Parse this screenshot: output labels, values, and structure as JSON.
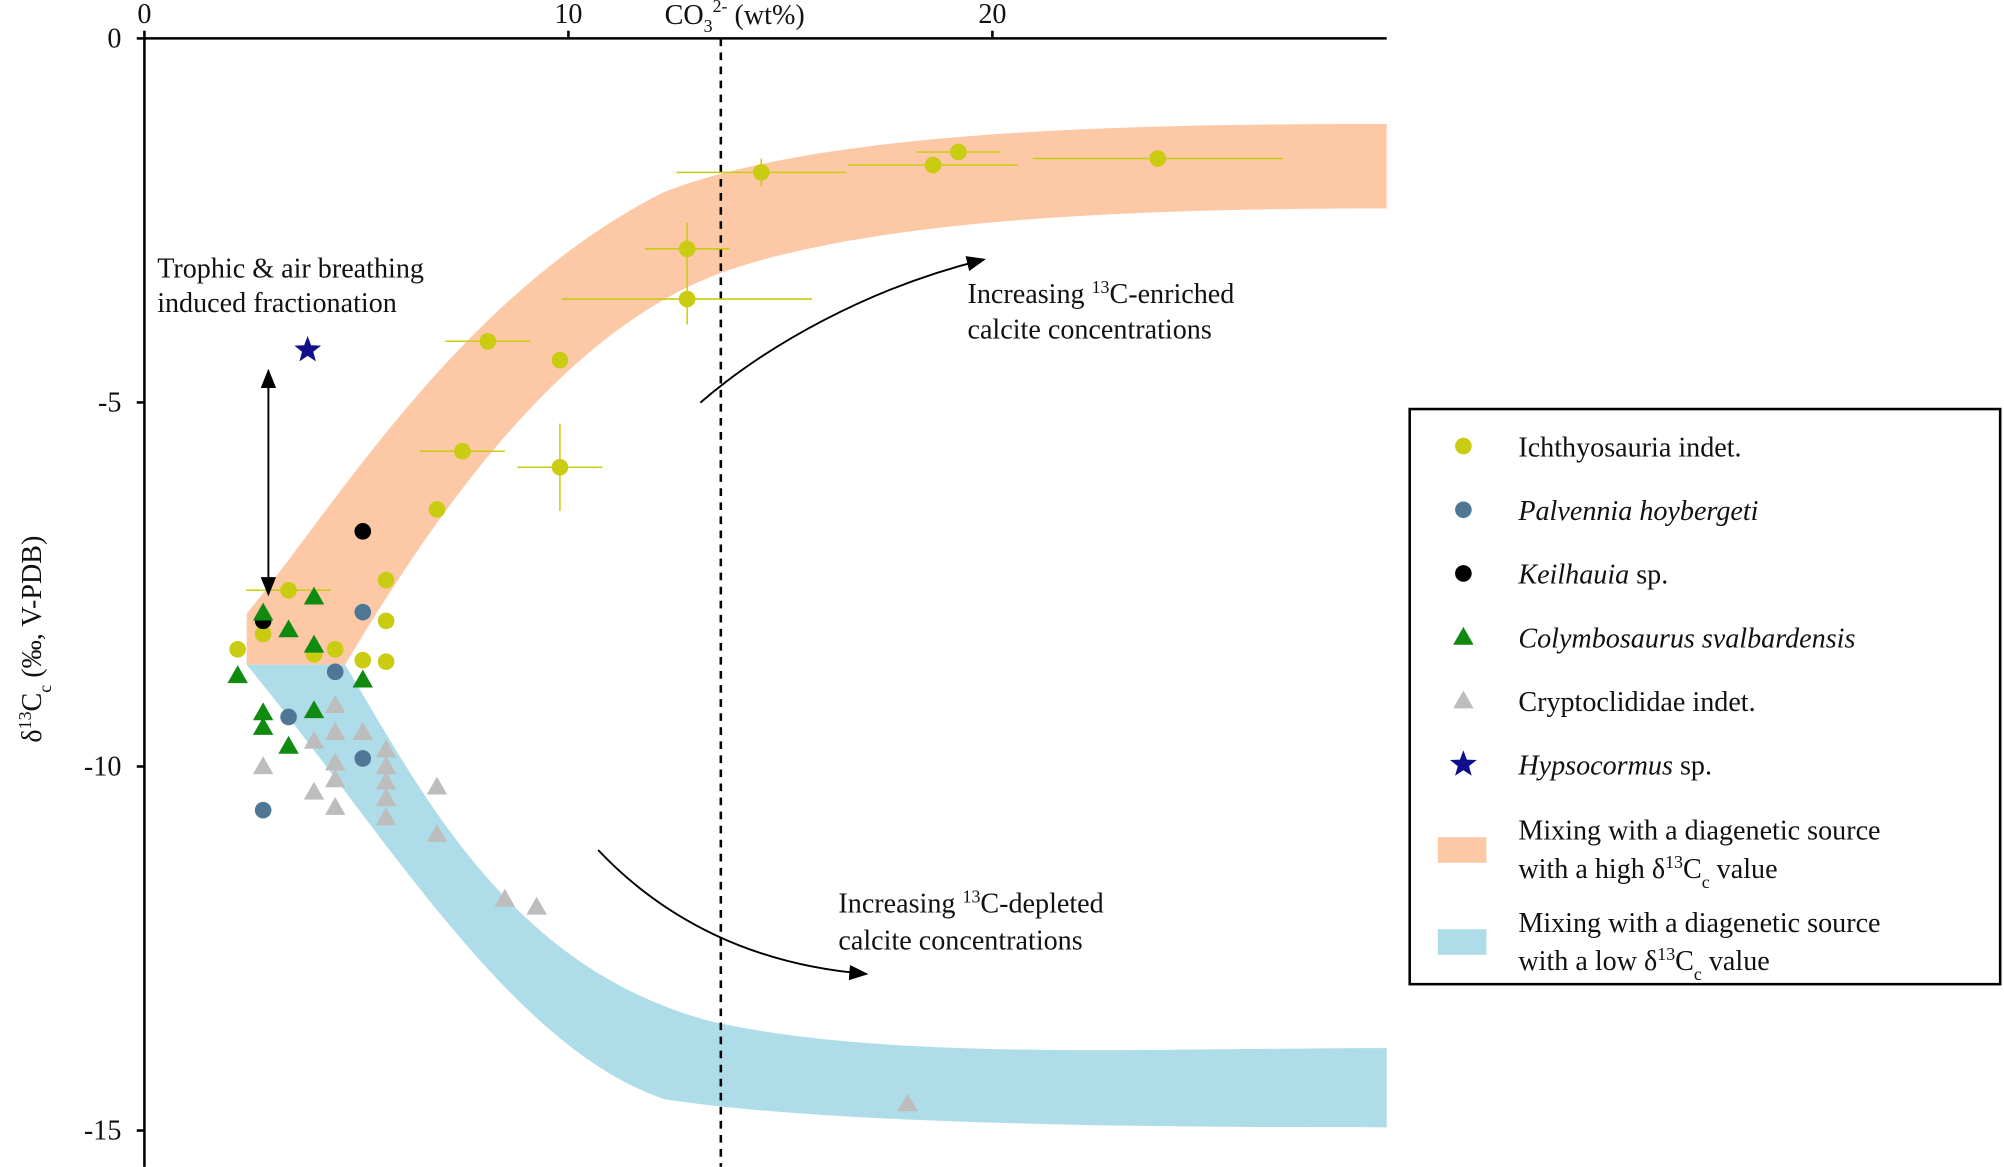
{
  "chart_data": {
    "type": "scatter",
    "x_label": [
      "CO",
      "3",
      "2-",
      " (wt%)"
    ],
    "y_label": [
      "δ",
      "13",
      "C",
      "c",
      " (‰, V-PDB)"
    ],
    "xlim": [
      0,
      29.3
    ],
    "xticks": [
      0,
      10,
      20
    ],
    "ylim": [
      -15.5,
      0
    ],
    "yticks": [
      0,
      -5,
      -10,
      -15
    ],
    "annotations": [
      [
        "Trophic & air breathing",
        "induced fractionation"
      ],
      [
        "Increasing ",
        "13",
        "C-enriched",
        "calcite concentrations"
      ],
      [
        "Increasing ",
        "13",
        "C-depleted",
        "calcite concentrations"
      ]
    ],
    "bands": [
      {
        "color": "#fcc8a5",
        "label": [
          "Mixing with a diagenetic source",
          "with a high δ",
          "13",
          "C",
          "c",
          " value"
        ]
      },
      {
        "color": "#aedce8",
        "label": [
          "Mixing with a diagenetic source",
          "with a low δ",
          "13",
          "C",
          "c",
          " value"
        ]
      }
    ],
    "series": [
      {
        "name": "Ichthyosauria indet.",
        "color": "#c9cc10",
        "marker": "circle",
        "italic": "none",
        "x": [
          14.55,
          18.6,
          19.2,
          23.9,
          12.8,
          12.8,
          8.1,
          9.8,
          7.5,
          9.8,
          6.9,
          5.7,
          5.7,
          5.7,
          3.4,
          2.8,
          2.2,
          4.0,
          4.5,
          5.15
        ],
        "values": [
          -1.84,
          -1.74,
          -1.56,
          -1.65,
          -2.89,
          -3.58,
          -4.16,
          -4.42,
          -5.67,
          -5.89,
          -6.47,
          -7.44,
          -8.0,
          -8.56,
          -7.58,
          -8.18,
          -8.39,
          -8.46,
          -8.39,
          -8.54
        ],
        "xerr": [
          2.0,
          2.0,
          1.0,
          2.95,
          1.0,
          2.95,
          1.0,
          null,
          1.0,
          1.0,
          null,
          null,
          null,
          null,
          1.0,
          null,
          null,
          null,
          null,
          null
        ],
        "yerr": [
          0.19,
          null,
          null,
          null,
          0.36,
          0.35,
          null,
          null,
          null,
          0.6,
          null,
          null,
          null,
          null,
          null,
          null,
          null,
          null,
          null,
          null
        ]
      },
      {
        "name": "Palvennia hoybergeti",
        "color": "#4f7795",
        "marker": "circle",
        "italic": "all",
        "x": [
          5.15,
          4.5,
          3.4,
          5.15,
          2.8
        ],
        "values": [
          -7.88,
          -8.7,
          -9.32,
          -9.89,
          -10.6
        ]
      },
      {
        "name": "Keilhauia sp.",
        "color": "#000000",
        "marker": "circle",
        "italic": "first-word",
        "x": [
          5.15,
          2.8
        ],
        "values": [
          -6.77,
          -8.0
        ]
      },
      {
        "name": "Colymbosaurus svalbardensis",
        "color": "#108a10",
        "marker": "triangle",
        "italic": "all",
        "x": [
          2.8,
          4.0,
          3.4,
          4.0,
          2.2,
          5.15,
          2.8,
          4.0,
          2.8,
          3.4
        ],
        "values": [
          -7.89,
          -7.67,
          -8.12,
          -8.33,
          -8.75,
          -8.81,
          -9.26,
          -9.23,
          -9.46,
          -9.72
        ]
      },
      {
        "name": "Cryptoclididae indet.",
        "color": "#bdbdbd",
        "marker": "triangle",
        "italic": "none",
        "x": [
          2.8,
          4.0,
          4.5,
          4.5,
          5.15,
          4.5,
          4.5,
          4.0,
          4.5,
          5.7,
          5.7,
          5.7,
          5.7,
          5.7,
          6.9,
          6.9,
          8.5,
          9.25,
          18.0
        ],
        "values": [
          -10.0,
          -9.65,
          -9.16,
          -9.53,
          -9.53,
          -9.95,
          -10.18,
          -10.35,
          -10.56,
          -9.77,
          -10.0,
          -10.21,
          -10.44,
          -10.7,
          -10.28,
          -10.93,
          -11.82,
          -11.93,
          -14.63
        ]
      },
      {
        "name": "Hypsocormus sp.",
        "color": "#10108a",
        "marker": "star",
        "italic": "first-word",
        "x": [
          3.85
        ],
        "values": [
          -4.28
        ]
      }
    ]
  }
}
